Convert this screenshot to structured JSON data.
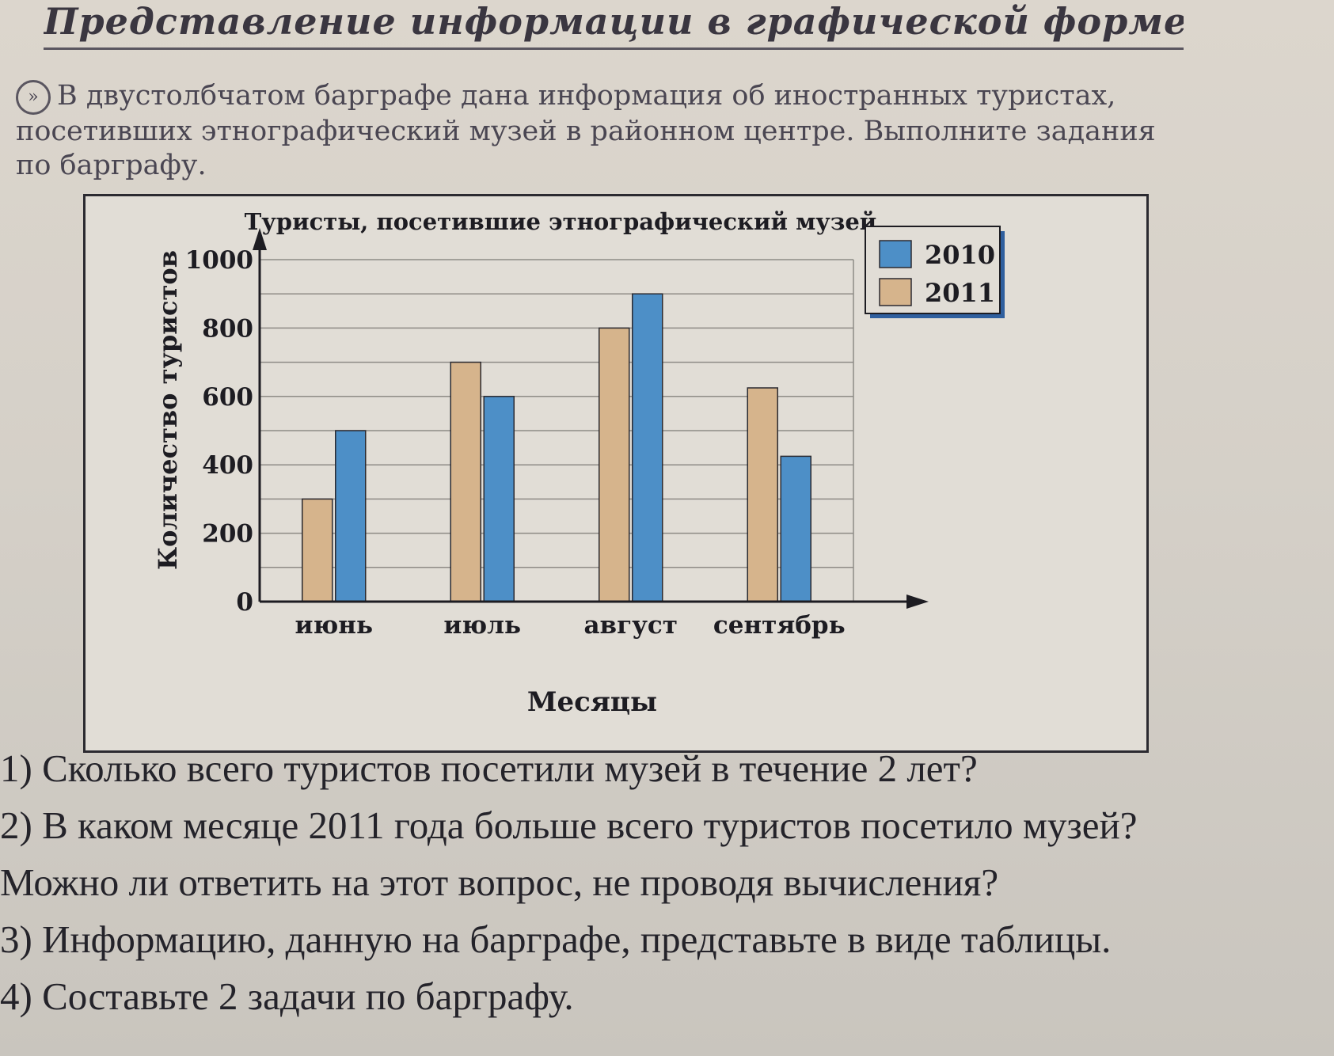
{
  "page": {
    "title": "Представление информации в графической форме",
    "intro": "В двустолбчатом барграфе дана информация об иностранных туристах, посетивших этнографический музей в районном центре. Выполните задания по барграфу."
  },
  "chart_data": {
    "type": "bar",
    "title": "Туристы, посетившие этнографический музей",
    "xlabel": "Месяцы",
    "ylabel": "Количество туристов",
    "categories": [
      "июнь",
      "июль",
      "август",
      "сентябрь"
    ],
    "series": [
      {
        "name": "2011",
        "color": "#d6b48c",
        "values": [
          300,
          700,
          800,
          625
        ]
      },
      {
        "name": "2010",
        "color": "#4d8fc7",
        "values": [
          500,
          600,
          900,
          425
        ]
      }
    ],
    "legend_order": [
      "2010",
      "2011"
    ],
    "legend_position": "top-right",
    "ylim": [
      0,
      1000
    ],
    "yticks": [
      0,
      200,
      400,
      600,
      800,
      1000
    ],
    "grid": true
  },
  "questions": [
    "1) Сколько всего туристов посетили музей в течение 2 лет?",
    "2) В каком месяце 2011 года больше всего туристов посетило музей?",
    "Можно ли ответить на этот вопрос, не проводя вычисления?",
    "3) Информацию, данную на барграфе, представьте в виде таблицы.",
    "4) Составьте 2 задачи по барграфу."
  ]
}
